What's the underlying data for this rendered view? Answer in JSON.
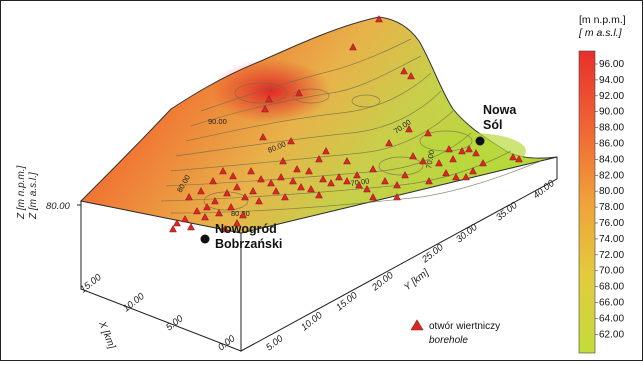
{
  "map": {
    "cities": [
      {
        "line1": "Nowa",
        "line2": "Sól"
      },
      {
        "line1": "Nowogród",
        "line2": "Bobrzański"
      }
    ],
    "contour_labels": [
      "90.00",
      "80.00",
      "70.00",
      "80.00",
      "70.00",
      "70.00",
      "80.00"
    ],
    "z_axis": {
      "title_line1": "Z [m n.p.m.]",
      "title_line2": "Z [m a.s.l.]",
      "tick": "80.00"
    },
    "x_axis": {
      "title": "X [km]",
      "ticks": [
        "0.00",
        "5.00",
        "10.00",
        "15.00"
      ]
    },
    "y_axis": {
      "title": "Y [km]",
      "ticks": [
        "5.00",
        "10.00",
        "15.00",
        "20.00",
        "25.00",
        "30.00",
        "35.00",
        "40.00"
      ]
    },
    "legend": {
      "line1": "otwór wiertniczy",
      "line2": "borehole",
      "color": "#dc2626"
    }
  },
  "colorbar": {
    "unit_line1": "[m n.p.m.]",
    "unit_line2": "[ m a.s.l.]",
    "labels": [
      "96.00",
      "94.00",
      "92.00",
      "90.00",
      "88.00",
      "86.00",
      "84.00",
      "82.00",
      "80.00",
      "78.00",
      "76.00",
      "74.00",
      "72.00",
      "70.00",
      "68.00",
      "66.00",
      "64.00",
      "62.00"
    ],
    "color_high": "#e8302b",
    "color_mid": "#f0a23a",
    "color_low": "#c3dc3a"
  }
}
